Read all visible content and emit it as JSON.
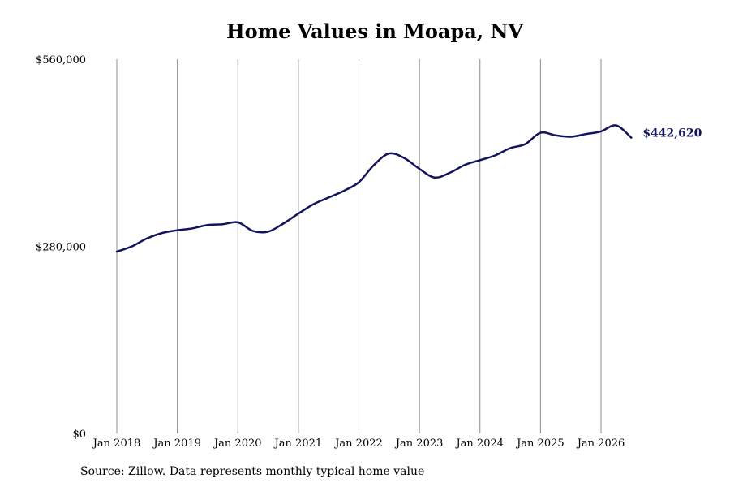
{
  "chart_data": {
    "type": "line",
    "title": "Home Values in Moapa, NV",
    "xlabel": "",
    "ylabel": "",
    "ylim": [
      0,
      560000
    ],
    "y_ticks": [
      0,
      280000,
      560000
    ],
    "y_tick_labels": [
      "$0",
      "$280,000",
      "$560,000"
    ],
    "x_ticks": [
      "2018-01",
      "2019-01",
      "2020-01",
      "2021-01",
      "2022-01",
      "2023-01",
      "2024-01",
      "2025-01",
      "2026-01"
    ],
    "x_tick_labels": [
      "Jan 2018",
      "Jan 2019",
      "Jan 2020",
      "Jan 2021",
      "Jan 2022",
      "Jan 2023",
      "Jan 2024",
      "Jan 2025",
      "Jan 2026"
    ],
    "grid": "vertical",
    "line_color": "#14145e",
    "series": [
      {
        "x": [
          "2018-01",
          "2018-04",
          "2018-07",
          "2018-10",
          "2019-01",
          "2019-04",
          "2019-07",
          "2019-10",
          "2020-01",
          "2020-04",
          "2020-07",
          "2020-10",
          "2021-01",
          "2021-04",
          "2021-07",
          "2021-10",
          "2022-01",
          "2022-04",
          "2022-07",
          "2022-10",
          "2023-01",
          "2023-04",
          "2023-07",
          "2023-10",
          "2024-01",
          "2024-04",
          "2024-07",
          "2024-10",
          "2025-01",
          "2025-04",
          "2025-07",
          "2025-10",
          "2026-01",
          "2026-04",
          "2026-07"
        ],
        "values": [
          272000,
          280000,
          292000,
          300000,
          304000,
          307000,
          312000,
          313000,
          316000,
          303000,
          302000,
          314000,
          329000,
          343000,
          353000,
          363000,
          376000,
          402000,
          419000,
          412000,
          396000,
          383000,
          390000,
          402000,
          409000,
          416000,
          427000,
          433000,
          450000,
          446000,
          444000,
          448000,
          452000,
          461000,
          442620
        ]
      }
    ],
    "end_label": "$442,620"
  },
  "source": "Source: Zillow. Data represents monthly typical home value"
}
